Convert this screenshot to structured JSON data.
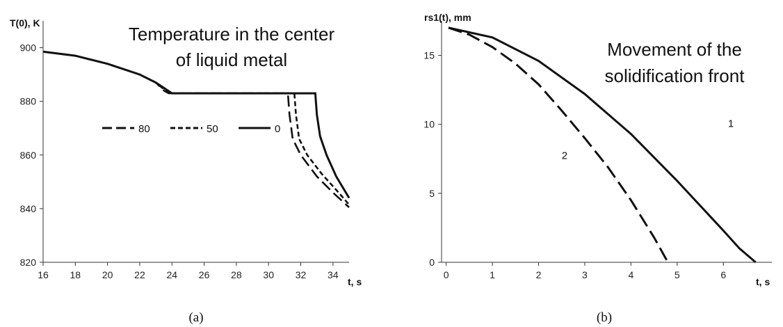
{
  "chart_data": [
    {
      "type": "line",
      "panel_label": "(a)",
      "annotation": [
        "Temperature in the center",
        "of liquid metal"
      ],
      "ylabel": "T(0), K",
      "xlabel": "t, s",
      "xlim": [
        16,
        35
      ],
      "ylim": [
        820,
        910
      ],
      "xticks": [
        16,
        18,
        20,
        22,
        24,
        26,
        28,
        30,
        32,
        34
      ],
      "yticks": [
        820,
        840,
        860,
        880,
        900
      ],
      "legend_position": "center",
      "series": [
        {
          "name": "80",
          "dash": "longdash",
          "points": [
            [
              16,
              898.5
            ],
            [
              18,
              897
            ],
            [
              20,
              894
            ],
            [
              22,
              890
            ],
            [
              23,
              887
            ],
            [
              23.5,
              884
            ],
            [
              23.8,
              883
            ],
            [
              31.2,
              883
            ],
            [
              31.3,
              875
            ],
            [
              31.5,
              866
            ],
            [
              32,
              860
            ],
            [
              33,
              852
            ],
            [
              34,
              846
            ],
            [
              35,
              840.5
            ]
          ]
        },
        {
          "name": "50",
          "dash": "shortdash",
          "points": [
            [
              16,
              898.5
            ],
            [
              18,
              897
            ],
            [
              20,
              894
            ],
            [
              22,
              890
            ],
            [
              23,
              887
            ],
            [
              23.6,
              884
            ],
            [
              23.9,
              883
            ],
            [
              31.6,
              883
            ],
            [
              31.7,
              875
            ],
            [
              31.9,
              866
            ],
            [
              32.4,
              860
            ],
            [
              33.3,
              853
            ],
            [
              34.2,
              847
            ],
            [
              35,
              841.5
            ]
          ]
        },
        {
          "name": "0",
          "dash": "solid",
          "points": [
            [
              16,
              898.5
            ],
            [
              18,
              897
            ],
            [
              20,
              894
            ],
            [
              22,
              890
            ],
            [
              23,
              887
            ],
            [
              23.5,
              885
            ],
            [
              24,
              883
            ],
            [
              32.9,
              883
            ],
            [
              33,
              875
            ],
            [
              33.2,
              867
            ],
            [
              33.6,
              860
            ],
            [
              34.2,
              852
            ],
            [
              35,
              844
            ]
          ]
        }
      ]
    },
    {
      "type": "line",
      "panel_label": "(b)",
      "annotation": [
        "Movement of the",
        "solidification front"
      ],
      "ylabel": "rs1(t), mm",
      "xlabel": "t, s",
      "xlim": [
        -0.1,
        7.05
      ],
      "ylim": [
        0,
        17.5
      ],
      "xticks": [
        0,
        1,
        2,
        3,
        4,
        5,
        6
      ],
      "yticks": [
        0,
        5,
        10,
        15
      ],
      "series": [
        {
          "name": "1",
          "dash": "solid",
          "label_at": [
            6.1,
            9.8
          ],
          "points": [
            [
              0.05,
              17
            ],
            [
              1,
              16.3
            ],
            [
              2,
              14.6
            ],
            [
              3,
              12.2
            ],
            [
              4,
              9.3
            ],
            [
              5,
              5.9
            ],
            [
              6,
              2.3
            ],
            [
              6.35,
              1
            ],
            [
              6.7,
              0
            ]
          ]
        },
        {
          "name": "2",
          "dash": "longdash",
          "label_at": [
            2.5,
            7.5
          ],
          "points": [
            [
              0.05,
              17
            ],
            [
              0.5,
              16.5
            ],
            [
              1,
              15.6
            ],
            [
              1.5,
              14.4
            ],
            [
              2,
              12.9
            ],
            [
              2.5,
              11
            ],
            [
              3,
              9
            ],
            [
              3.5,
              6.9
            ],
            [
              4,
              4.5
            ],
            [
              4.5,
              1.8
            ],
            [
              4.8,
              0
            ]
          ]
        }
      ]
    }
  ]
}
